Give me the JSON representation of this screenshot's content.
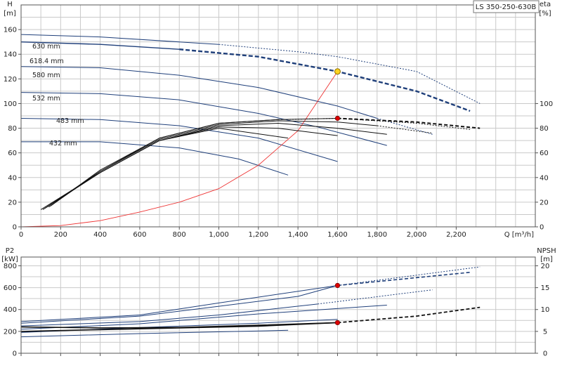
{
  "product_label": "LS 350-250-630B",
  "chart_data": [
    {
      "type": "line",
      "title": "",
      "xlabel": "Q [m³/h]",
      "ylabel_left_title": "H",
      "ylabel_left_unit": "[m]",
      "ylabel_right_title": "eta",
      "ylabel_right_unit": "[%]",
      "xlim": [
        0,
        2600
      ],
      "ylim_left": [
        0,
        180
      ],
      "ylim_right": [
        0,
        180
      ],
      "x_ticks": [
        0,
        200,
        400,
        600,
        800,
        1000,
        1200,
        1400,
        1600,
        1800,
        2000,
        2200
      ],
      "x_tick_labels": [
        "0",
        "200",
        "400",
        "600",
        "800",
        "1,000",
        "1,200",
        "1,400",
        "1,600",
        "1,800",
        "2,000",
        "2,200"
      ],
      "y_left_ticks": [
        0,
        20,
        40,
        60,
        80,
        100,
        120,
        140,
        160
      ],
      "y_right_ticks": [
        0,
        20,
        40,
        60,
        80,
        100
      ],
      "grid": true,
      "head_curves": [
        {
          "name": "630 mm",
          "solid": [
            [
              0,
              156
            ],
            [
              400,
              154
            ],
            [
              800,
              150
            ],
            [
              1000,
              148
            ]
          ],
          "dashed": [
            [
              1000,
              148
            ],
            [
              1400,
              142
            ],
            [
              1600,
              138
            ],
            [
              2000,
              126
            ],
            [
              2320,
              100
            ]
          ]
        },
        {
          "name": "618.4 mm",
          "solid": [
            [
              0,
              150
            ],
            [
              400,
              148
            ],
            [
              800,
              144
            ]
          ],
          "dashed": [
            [
              800,
              144
            ],
            [
              1200,
              138
            ],
            [
              1600,
              126
            ],
            [
              2000,
              110
            ],
            [
              2270,
              94
            ]
          ]
        },
        {
          "name": "580 mm",
          "solid": [
            [
              0,
              130
            ],
            [
              400,
              129
            ],
            [
              800,
              123
            ],
            [
              1200,
              113
            ],
            [
              1600,
              98
            ],
            [
              1800,
              88
            ]
          ],
          "dashed": [
            [
              1800,
              88
            ],
            [
              2080,
              75
            ]
          ]
        },
        {
          "name": "532 mm",
          "solid": [
            [
              0,
              109
            ],
            [
              400,
              108
            ],
            [
              800,
              103
            ],
            [
              1200,
              92
            ],
            [
              1500,
              81
            ],
            [
              1850,
              66
            ]
          ]
        },
        {
          "name": "483 mm",
          "solid": [
            [
              0,
              88
            ],
            [
              400,
              87
            ],
            [
              800,
              82
            ],
            [
              1200,
              72
            ],
            [
              1600,
              53
            ]
          ]
        },
        {
          "name": "432 mm",
          "solid": [
            [
              0,
              69
            ],
            [
              400,
              69
            ],
            [
              800,
              64
            ],
            [
              1100,
              55
            ],
            [
              1350,
              42
            ]
          ]
        }
      ],
      "system_curve": [
        [
          0,
          0
        ],
        [
          200,
          1
        ],
        [
          400,
          5
        ],
        [
          600,
          12
        ],
        [
          800,
          20
        ],
        [
          1000,
          31
        ],
        [
          1200,
          50
        ],
        [
          1400,
          78
        ],
        [
          1600,
          126
        ]
      ],
      "efficiency_curves": [
        {
          "solid": [
            [
              100,
              14
            ],
            [
              400,
              44
            ],
            [
              700,
              70
            ],
            [
              1000,
              80
            ],
            [
              1350,
              72
            ]
          ]
        },
        {
          "solid": [
            [
              110,
              14
            ],
            [
              400,
              44
            ],
            [
              700,
              70
            ],
            [
              1000,
              81
            ],
            [
              1300,
              80
            ],
            [
              1600,
              74
            ]
          ]
        },
        {
          "solid": [
            [
              120,
              15
            ],
            [
              400,
              44
            ],
            [
              700,
              70
            ],
            [
              1000,
              82
            ],
            [
              1300,
              84
            ],
            [
              1600,
              80
            ],
            [
              1850,
              75
            ]
          ]
        },
        {
          "solid": [
            [
              130,
              16
            ],
            [
              400,
              45
            ],
            [
              700,
              71
            ],
            [
              1000,
              83
            ],
            [
              1300,
              86
            ],
            [
              1600,
              85
            ],
            [
              1800,
              82
            ]
          ],
          "dashed": [
            [
              1800,
              82
            ],
            [
              2080,
              76
            ]
          ]
        },
        {
          "solid": [
            [
              140,
              16
            ],
            [
              400,
              45
            ],
            [
              700,
              72
            ],
            [
              1000,
              84
            ],
            [
              1300,
              87
            ],
            [
              1600,
              88
            ]
          ],
          "dashed": [
            [
              1600,
              88
            ],
            [
              2000,
              85
            ],
            [
              2320,
              80
            ]
          ]
        },
        {
          "solid": [
            [
              150,
              17
            ],
            [
              400,
              46
            ],
            [
              700,
              72
            ],
            [
              1000,
              84
            ],
            [
              1300,
              87
            ]
          ],
          "dashed": [
            [
              1300,
              87
            ],
            [
              1600,
              88
            ],
            [
              2000,
              84
            ],
            [
              2270,
              79
            ]
          ]
        }
      ],
      "duty_point": {
        "x": 1600,
        "y": 126,
        "color": "#ffd21f"
      },
      "efficiency_point": {
        "x": 1600,
        "y": 88,
        "color": "#dd0000"
      }
    },
    {
      "type": "line",
      "title": "",
      "xlabel": "",
      "ylabel_left_title": "P2",
      "ylabel_left_unit": "[kW]",
      "ylabel_right_title": "NPSH",
      "ylabel_right_unit": "[m]",
      "xlim": [
        0,
        2600
      ],
      "ylim_left": [
        0,
        880
      ],
      "ylim_right": [
        0,
        22
      ],
      "y_left_ticks": [
        0,
        200,
        400,
        600,
        800
      ],
      "y_right_ticks": [
        0,
        5,
        10,
        15,
        20
      ],
      "grid": true,
      "power_curves": [
        {
          "solid": [
            [
              0,
              290
            ],
            [
              600,
              350
            ],
            [
              1000,
              460
            ],
            [
              1600,
              620
            ]
          ],
          "dashed": [
            [
              1600,
              620
            ],
            [
              2320,
              790
            ]
          ]
        },
        {
          "solid": [
            [
              0,
              275
            ],
            [
              600,
              340
            ],
            [
              1000,
              430
            ],
            [
              1400,
              520
            ],
            [
              1600,
              620
            ]
          ],
          "dashed": [
            [
              1600,
              620
            ],
            [
              2270,
              740
            ]
          ]
        },
        {
          "solid": [
            [
              0,
              250
            ],
            [
              600,
              290
            ],
            [
              1000,
              350
            ],
            [
              1500,
              450
            ]
          ],
          "dashed": [
            [
              1500,
              450
            ],
            [
              2080,
              580
            ]
          ]
        },
        {
          "solid": [
            [
              0,
              220
            ],
            [
              600,
              270
            ],
            [
              1200,
              360
            ],
            [
              1850,
              440
            ]
          ]
        },
        {
          "solid": [
            [
              0,
              190
            ],
            [
              600,
              235
            ],
            [
              1200,
              275
            ],
            [
              1600,
              310
            ]
          ]
        },
        {
          "solid": [
            [
              0,
              150
            ],
            [
              600,
              180
            ],
            [
              1100,
              200
            ],
            [
              1350,
              210
            ]
          ]
        }
      ],
      "npsh_curves": [
        {
          "solid": [
            [
              0,
              6
            ],
            [
              400,
              5.8
            ],
            [
              800,
              5.9
            ],
            [
              1200,
              6.4
            ],
            [
              1600,
              7.0
            ]
          ],
          "dashed": [
            [
              1600,
              7.0
            ],
            [
              2000,
              8.5
            ],
            [
              2320,
              10.5
            ]
          ]
        },
        {
          "solid": [
            [
              0,
              5
            ],
            [
              400,
              5.4
            ],
            [
              800,
              5.8
            ],
            [
              1200,
              6.2
            ],
            [
              1600,
              7.0
            ]
          ]
        }
      ],
      "power_point": {
        "x": 1600,
        "y": 620,
        "color": "#dd0000"
      },
      "npsh_point": {
        "x": 1600,
        "y": 7,
        "color": "#dd0000"
      }
    }
  ]
}
